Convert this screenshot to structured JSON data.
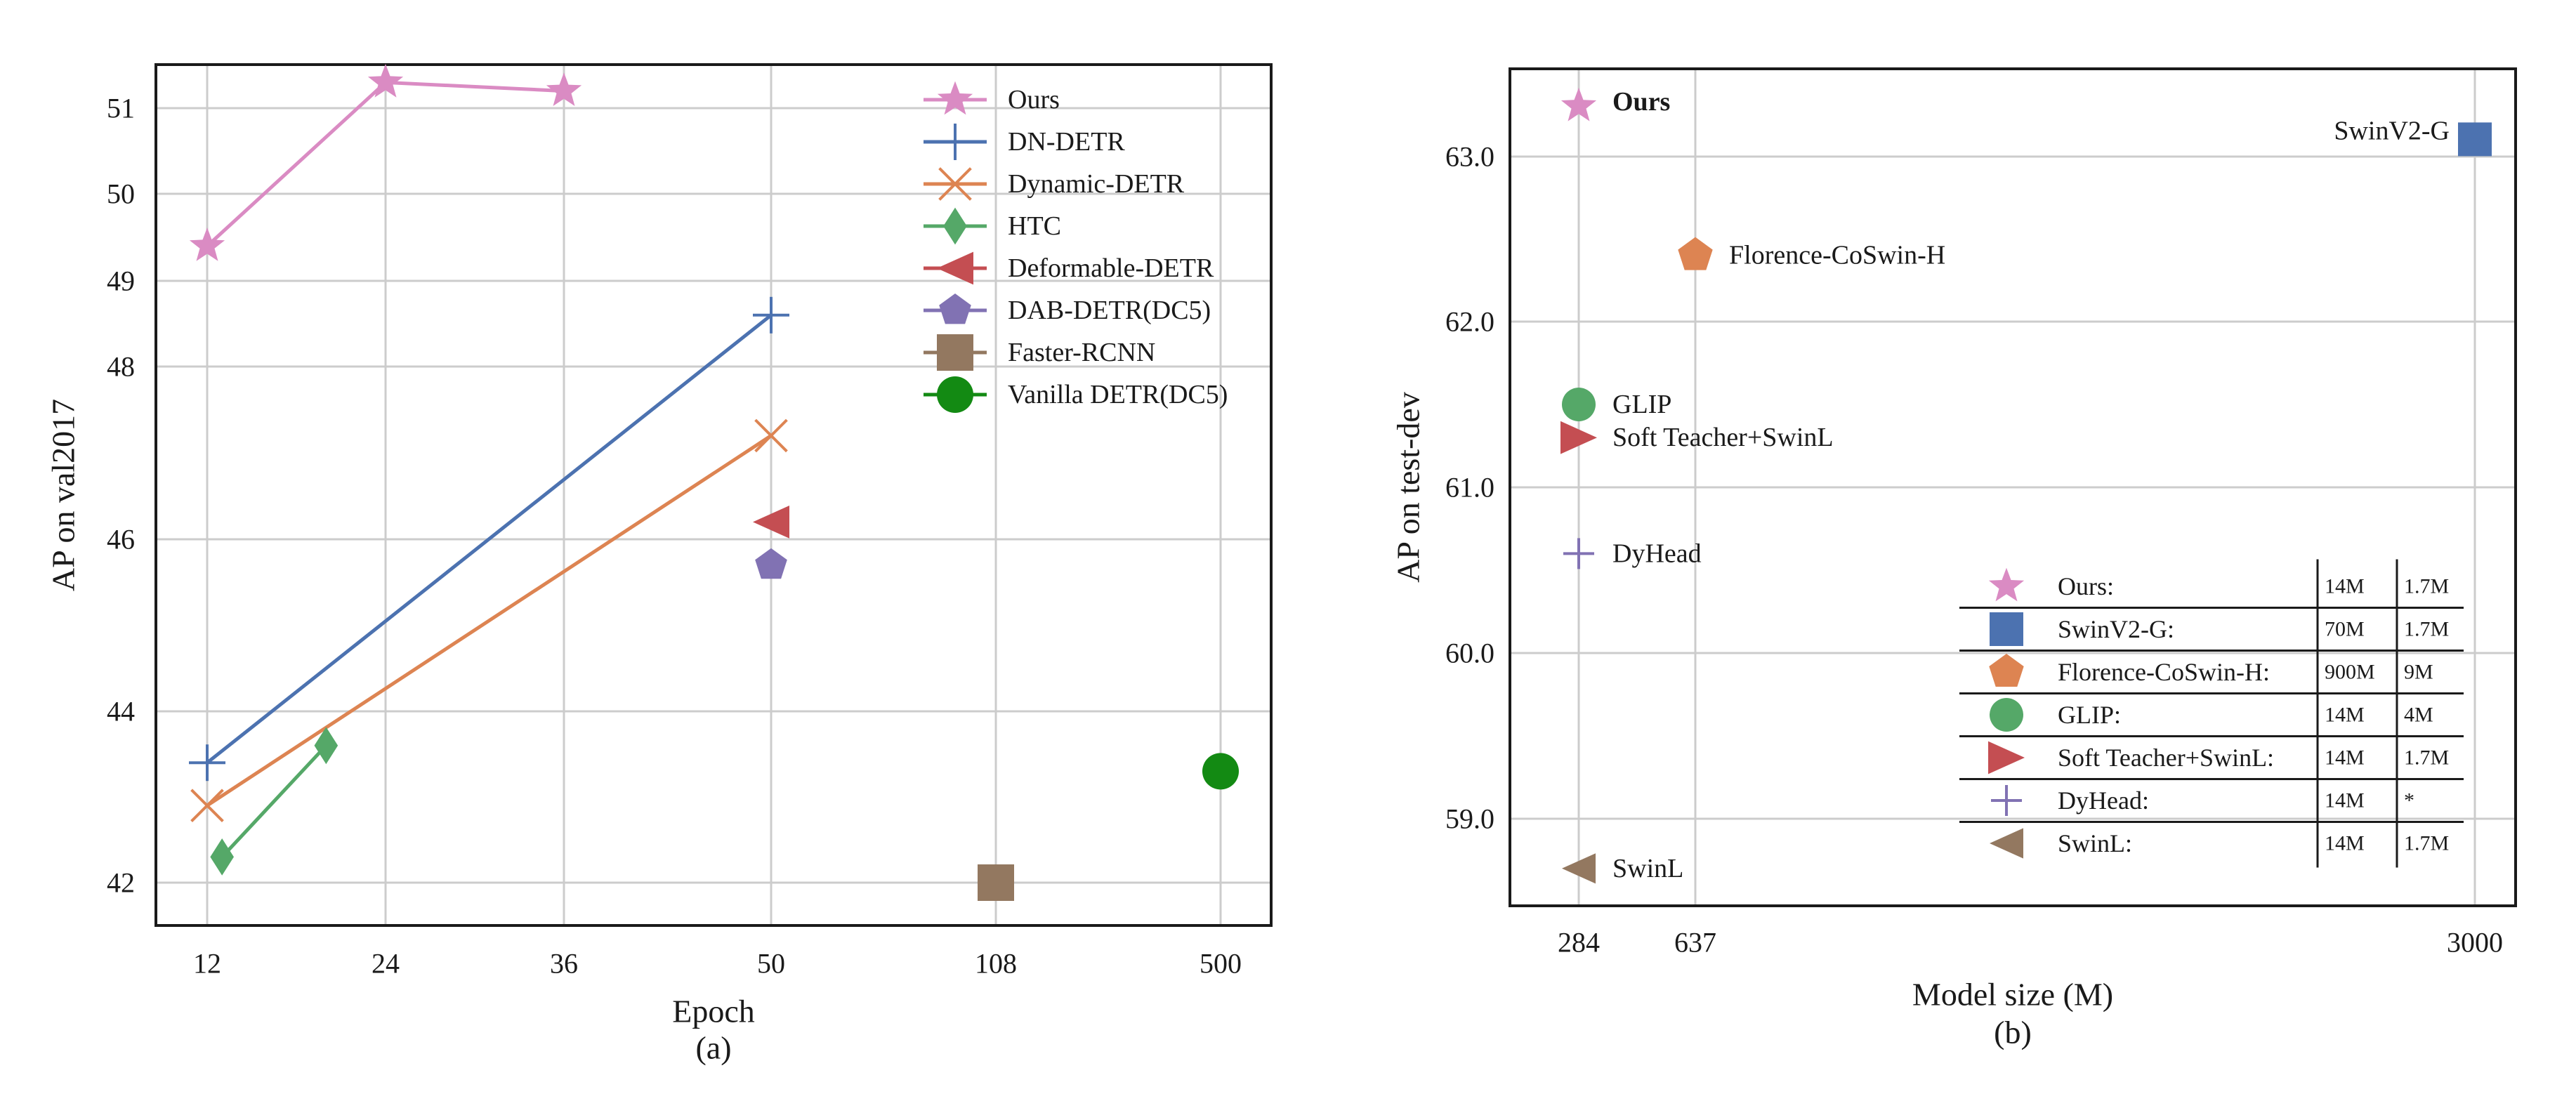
{
  "chart_data": [
    {
      "type": "line",
      "panel_label": "(a)",
      "xlabel": "Epoch",
      "ylabel": "AP on val2017",
      "x_categories": [
        "12",
        "24",
        "36",
        "50",
        "108",
        "500"
      ],
      "yticks": [
        "42",
        "44",
        "46",
        "48",
        "49",
        "50",
        "51"
      ],
      "ylim": [
        41.5,
        51.5
      ],
      "grid": true,
      "legend_position": "top-right",
      "series": [
        {
          "name": "Ours",
          "marker": "star",
          "color": "#da8bc3",
          "connected": true,
          "points": [
            [
              "12",
              49.4
            ],
            [
              "24",
              51.3
            ],
            [
              "36",
              51.2
            ]
          ]
        },
        {
          "name": "DN-DETR",
          "marker": "plus",
          "color": "#4c72b0",
          "connected": true,
          "points": [
            [
              "12",
              43.4
            ],
            [
              "50",
              48.6
            ]
          ]
        },
        {
          "name": "Dynamic-DETR",
          "marker": "x",
          "color": "#dd8452",
          "connected": true,
          "points": [
            [
              "12",
              42.9
            ],
            [
              "50",
              47.2
            ]
          ]
        },
        {
          "name": "HTC",
          "marker": "diamond",
          "color": "#55a868",
          "connected": true,
          "points": [
            [
              13.0,
              42.3
            ],
            [
              20.0,
              43.6
            ]
          ]
        },
        {
          "name": "Deformable-DETR",
          "marker": "triangle-left",
          "color": "#c44e52",
          "connected": false,
          "points": [
            [
              "50",
              46.2
            ]
          ]
        },
        {
          "name": "DAB-DETR(DC5)",
          "marker": "pentagon",
          "color": "#8172b3",
          "connected": false,
          "points": [
            [
              "50",
              45.7
            ]
          ]
        },
        {
          "name": "Faster-RCNN",
          "marker": "square",
          "color": "#937860",
          "connected": false,
          "points": [
            [
              "108",
              42.0
            ]
          ]
        },
        {
          "name": "Vanilla DETR(DC5)",
          "marker": "circle",
          "color": "#138a13",
          "connected": false,
          "points": [
            [
              "500",
              43.3
            ]
          ]
        }
      ]
    },
    {
      "type": "scatter",
      "panel_label": "(b)",
      "xlabel": "Model size (M)",
      "ylabel": "AP on test-dev",
      "xticks": [
        "284",
        "637",
        "3000"
      ],
      "yticks": [
        "59.0",
        "60.0",
        "61.0",
        "62.0",
        "63.0"
      ],
      "ylim": [
        58.5,
        63.5
      ],
      "grid": true,
      "points": [
        {
          "name": "Ours",
          "label": "Ours",
          "bold": true,
          "marker": "star",
          "color": "#da8bc3",
          "x": 284,
          "y": 63.3
        },
        {
          "name": "SwinV2-G",
          "label": "SwinV2-G",
          "marker": "square",
          "color": "#4c72b0",
          "x": 3000,
          "y": 63.1
        },
        {
          "name": "Florence-CoSwin-H",
          "label": "Florence-CoSwin-H",
          "marker": "pentagon",
          "color": "#dd8452",
          "x": 637,
          "y": 62.4
        },
        {
          "name": "GLIP",
          "label": "GLIP",
          "marker": "circle",
          "color": "#55a868",
          "x": 284,
          "y": 61.5
        },
        {
          "name": "Soft Teacher+SwinL",
          "label": "Soft Teacher+SwinL",
          "marker": "triangle-right",
          "color": "#c44e52",
          "x": 284,
          "y": 61.3
        },
        {
          "name": "DyHead",
          "label": "DyHead",
          "marker": "plus",
          "color": "#8172b3",
          "x": 284,
          "y": 60.6
        },
        {
          "name": "SwinL",
          "label": "SwinL",
          "marker": "triangle-left",
          "color": "#937860",
          "x": 284,
          "y": 58.7
        }
      ],
      "legend_table": [
        {
          "label": "Ours:",
          "marker": "star",
          "color": "#da8bc3",
          "col1": "14M",
          "col2": "1.7M"
        },
        {
          "label": "SwinV2-G:",
          "marker": "square",
          "color": "#4c72b0",
          "col1": "70M",
          "col2": "1.7M"
        },
        {
          "label": "Florence-CoSwin-H:",
          "marker": "pentagon",
          "color": "#dd8452",
          "col1": "900M",
          "col2": "9M"
        },
        {
          "label": "GLIP:",
          "marker": "circle",
          "color": "#55a868",
          "col1": "14M",
          "col2": "4M"
        },
        {
          "label": "Soft Teacher+SwinL:",
          "marker": "triangle-right",
          "color": "#c44e52",
          "col1": "14M",
          "col2": "1.7M"
        },
        {
          "label": "DyHead:",
          "marker": "plus",
          "color": "#8172b3",
          "col1": "14M",
          "col2": "*"
        },
        {
          "label": "SwinL:",
          "marker": "triangle-left",
          "color": "#937860",
          "col1": "14M",
          "col2": "1.7M"
        }
      ]
    }
  ]
}
